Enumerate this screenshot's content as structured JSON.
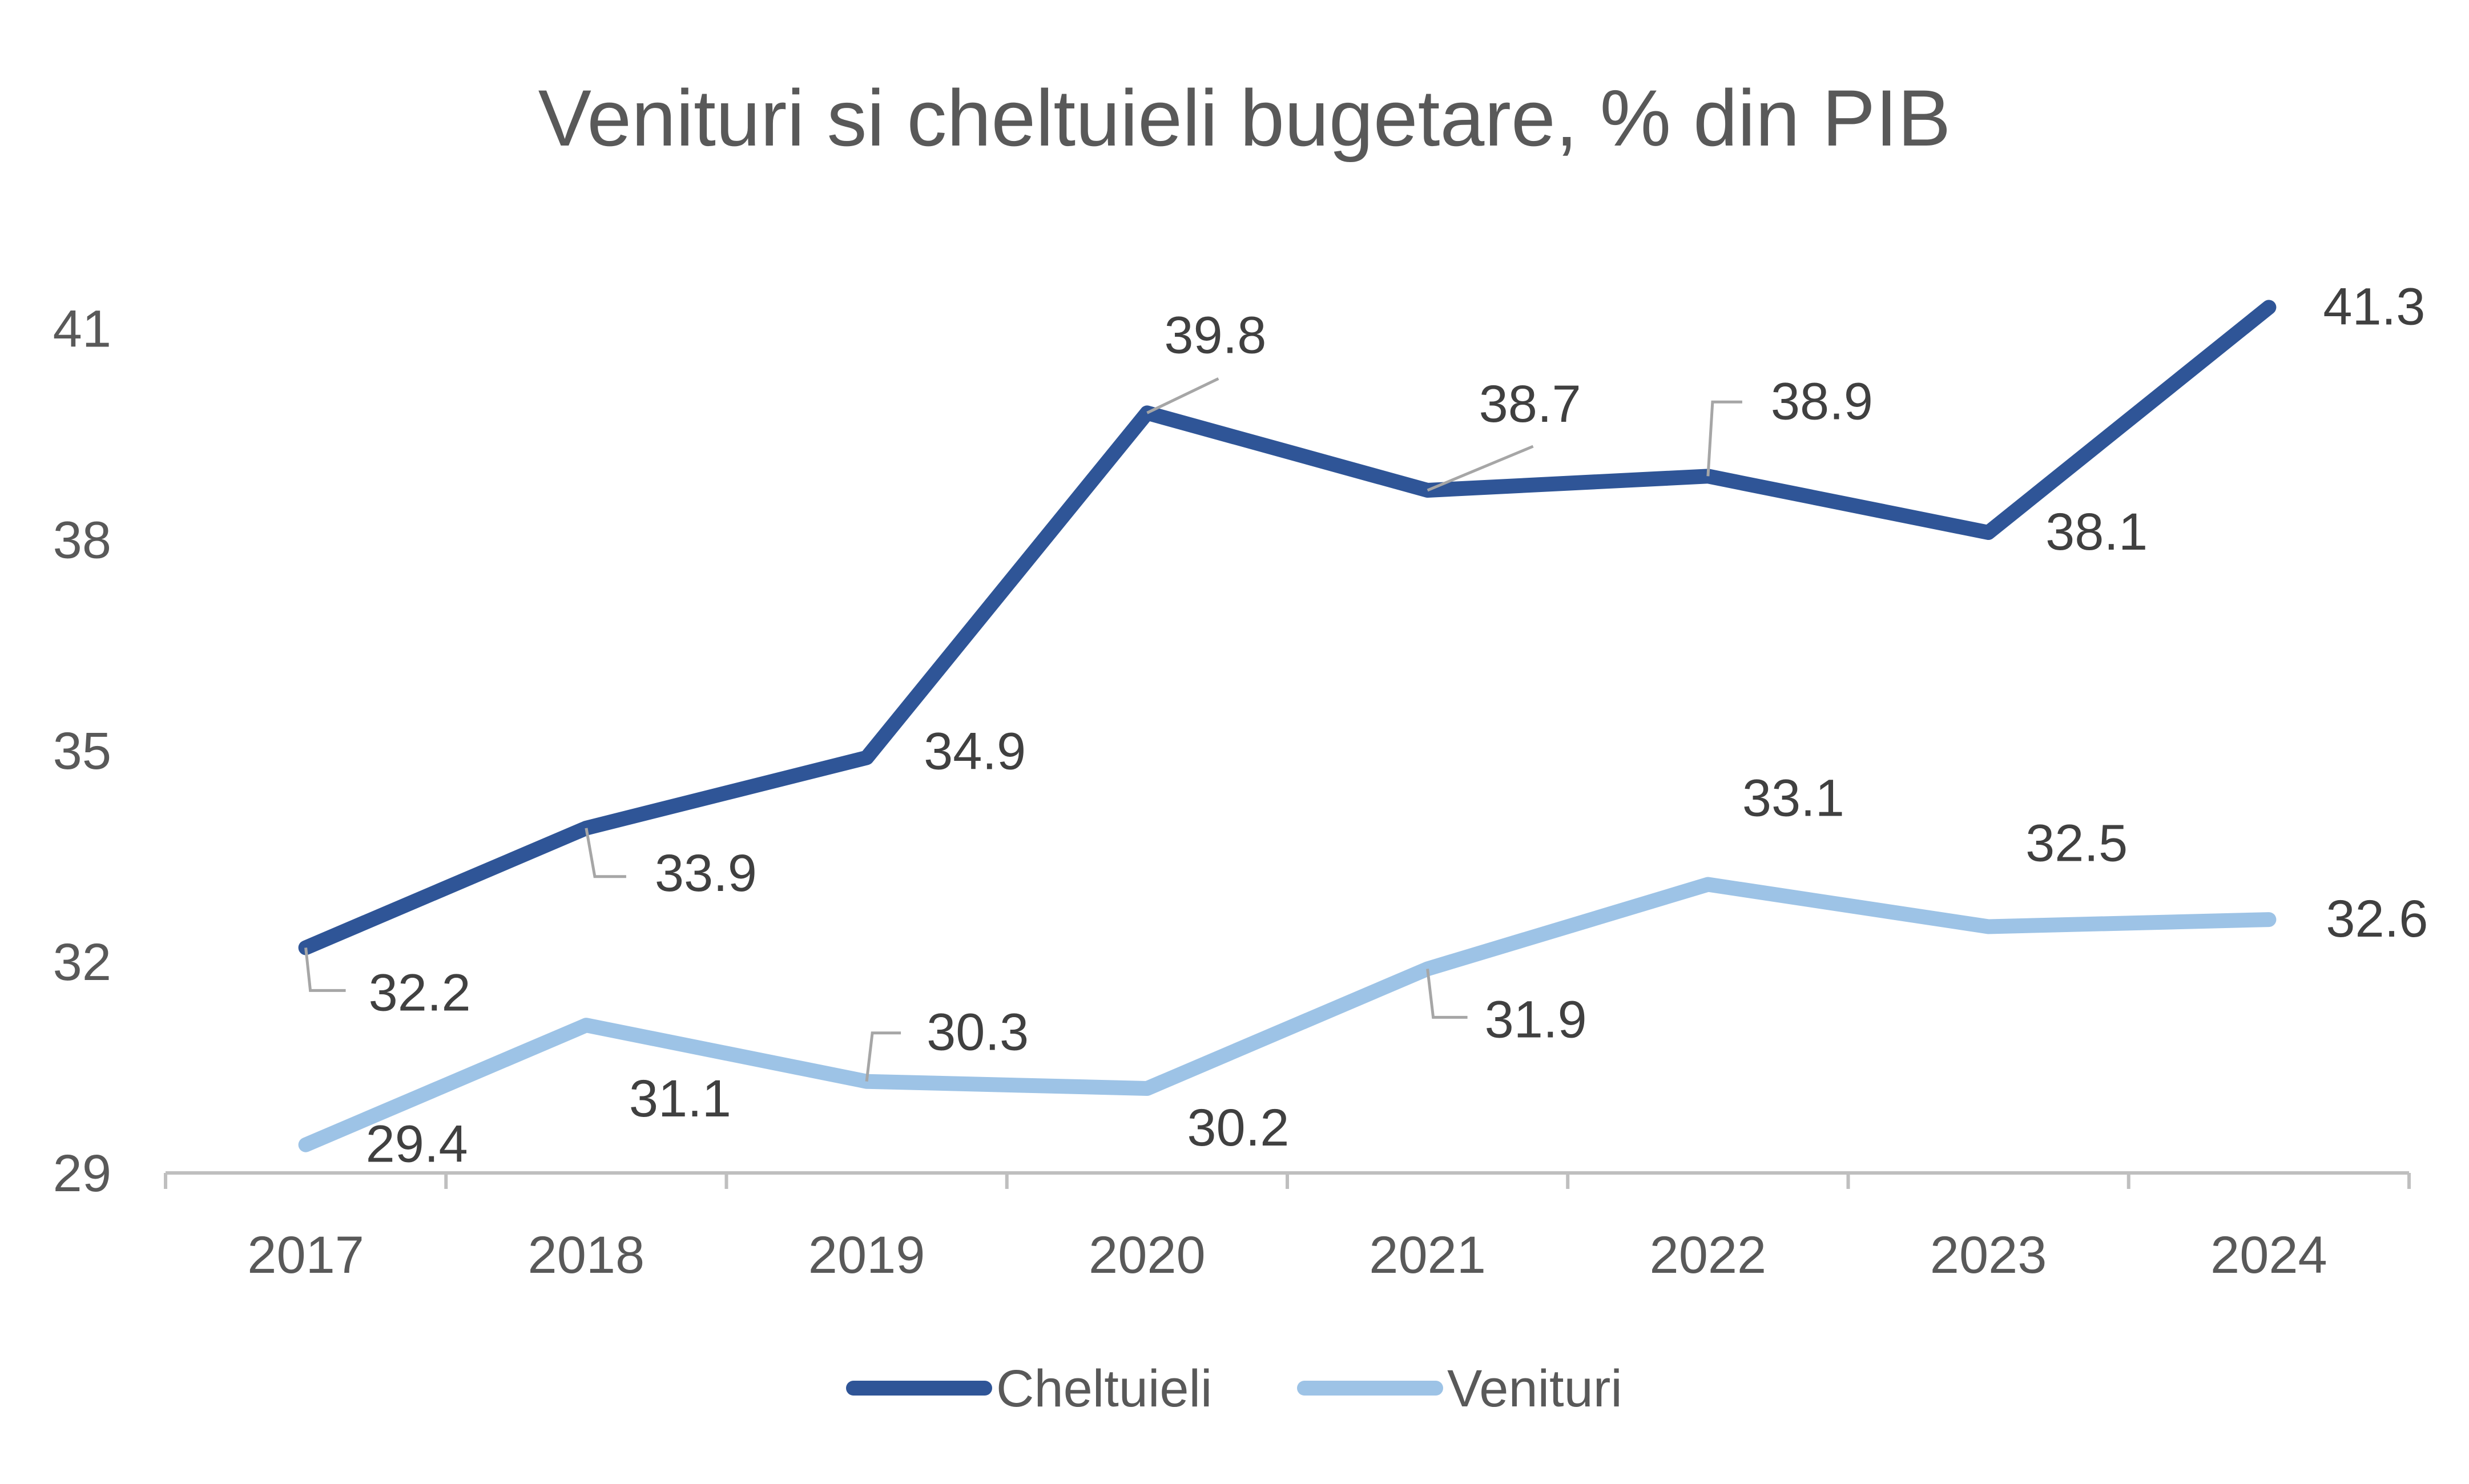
{
  "chart_data": {
    "type": "line",
    "title": "Venituri si cheltuieli bugetare, % din PIB",
    "xlabel": "",
    "ylabel": "",
    "categories": [
      "2017",
      "2018",
      "2019",
      "2020",
      "2021",
      "2022",
      "2023",
      "2024"
    ],
    "y_ticks": [
      "29",
      "32",
      "35",
      "38",
      "41"
    ],
    "ylim": [
      29,
      42.2
    ],
    "grid": false,
    "legend_position": "bottom",
    "series": [
      {
        "name": "Cheltuieli",
        "color": "#2f5597",
        "values": [
          32.2,
          33.9,
          34.9,
          39.8,
          38.7,
          38.9,
          38.1,
          41.3
        ],
        "labels": [
          "32.2",
          "33.9",
          "34.9",
          "39.8",
          "38.7",
          "38.9",
          "38.1",
          "41.3"
        ]
      },
      {
        "name": "Venituri",
        "color": "#9dc3e6",
        "values": [
          29.4,
          31.1,
          30.3,
          30.2,
          31.9,
          33.1,
          32.5,
          32.6
        ],
        "labels": [
          "29.4",
          "31.1",
          "30.3",
          "30.2",
          "31.9",
          "33.1",
          "32.5",
          "32.6"
        ]
      }
    ]
  }
}
